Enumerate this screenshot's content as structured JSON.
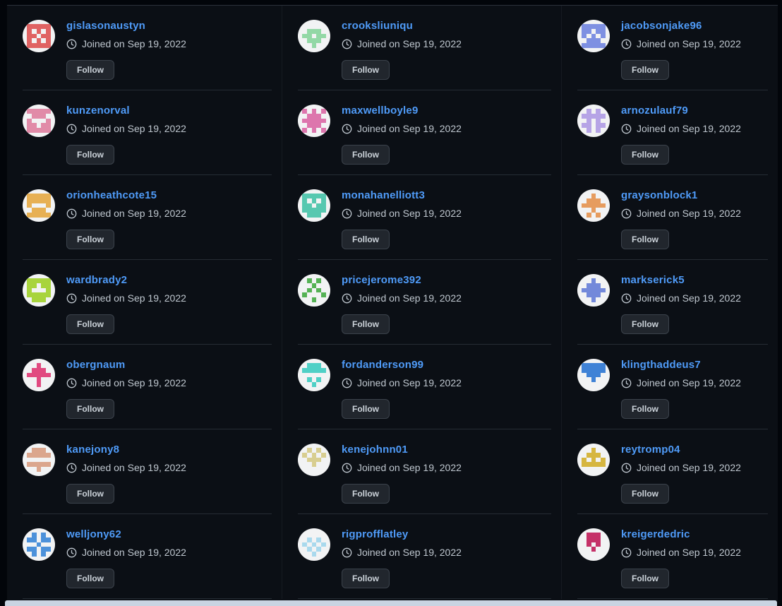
{
  "page": {
    "joined_date_text": "Joined on Sep 19, 2022",
    "follow_label": "Follow"
  },
  "colors": {
    "background": "#0b0f15",
    "link_blue": "#4f9bf8",
    "muted_text": "#bfc7cf",
    "button_bg": "#21262d",
    "button_border": "#3b424b",
    "separator": "#262c34",
    "bottom_strip": "#c9d4e2"
  },
  "users": [
    {
      "username": "gislasonaustyn",
      "joined": "Joined on Sep 19, 2022",
      "follow_label": "Follow",
      "avatar": {
        "color": "#e06363",
        "bg": "#f2f3f4",
        "pattern": [
          "11111",
          "10101",
          "11011",
          "10101",
          "11111"
        ]
      }
    },
    {
      "username": "crooksliuniqu",
      "joined": "Joined on Sep 19, 2022",
      "follow_label": "Follow",
      "avatar": {
        "color": "#93d8a6",
        "bg": "#f2f3f4",
        "pattern": [
          "00000",
          "01110",
          "11011",
          "01110",
          "00100"
        ]
      }
    },
    {
      "username": "jacobsonjake96",
      "joined": "Joined on Sep 19, 2022",
      "follow_label": "Follow",
      "avatar": {
        "color": "#7e90e2",
        "bg": "#f2f3f4",
        "pattern": [
          "11111",
          "11011",
          "10101",
          "01110",
          "11111"
        ]
      }
    },
    {
      "username": "kunzenorval",
      "joined": "Joined on Sep 19, 2022",
      "follow_label": "Follow",
      "avatar": {
        "color": "#e18ba8",
        "bg": "#f2f3f4",
        "pattern": [
          "11111",
          "01110",
          "10001",
          "11011",
          "11111"
        ]
      }
    },
    {
      "username": "maxwellboyle9",
      "joined": "Joined on Sep 19, 2022",
      "follow_label": "Follow",
      "avatar": {
        "color": "#dd76ad",
        "bg": "#f2f3f4",
        "pattern": [
          "10101",
          "01110",
          "11111",
          "01110",
          "10101"
        ]
      }
    },
    {
      "username": "arnozulauf79",
      "joined": "Joined on Sep 19, 2022",
      "follow_label": "Follow",
      "avatar": {
        "color": "#b6a4e6",
        "bg": "#f2f3f4",
        "pattern": [
          "01010",
          "11111",
          "01010",
          "11011",
          "01010"
        ]
      }
    },
    {
      "username": "orionheathcote15",
      "joined": "Joined on Sep 19, 2022",
      "follow_label": "Follow",
      "avatar": {
        "color": "#e7b054",
        "bg": "#f2f3f4",
        "pattern": [
          "11111",
          "11111",
          "10001",
          "01110",
          "11111"
        ]
      }
    },
    {
      "username": "monahanelliott3",
      "joined": "Joined on Sep 19, 2022",
      "follow_label": "Follow",
      "avatar": {
        "color": "#57c8b0",
        "bg": "#f2f3f4",
        "pattern": [
          "11111",
          "10101",
          "11011",
          "11111",
          "01110"
        ]
      }
    },
    {
      "username": "graysonblock1",
      "joined": "Joined on Sep 19, 2022",
      "follow_label": "Follow",
      "avatar": {
        "color": "#e69c5f",
        "bg": "#f2f3f4",
        "pattern": [
          "00100",
          "01110",
          "11111",
          "00100",
          "01010"
        ]
      }
    },
    {
      "username": "wardbrady2",
      "joined": "Joined on Sep 19, 2022",
      "follow_label": "Follow",
      "avatar": {
        "color": "#a8d43d",
        "bg": "#f2f3f4",
        "pattern": [
          "11111",
          "11011",
          "10001",
          "11111",
          "01110"
        ]
      }
    },
    {
      "username": "pricejerome392",
      "joined": "Joined on Sep 19, 2022",
      "follow_label": "Follow",
      "avatar": {
        "color": "#55b255",
        "bg": "#f2f3f4",
        "pattern": [
          "01010",
          "00100",
          "01010",
          "10001",
          "00100"
        ]
      }
    },
    {
      "username": "markserick5",
      "joined": "Joined on Sep 19, 2022",
      "follow_label": "Follow",
      "avatar": {
        "color": "#7389da",
        "bg": "#f2f3f4",
        "pattern": [
          "00100",
          "01110",
          "11111",
          "01110",
          "00100"
        ]
      }
    },
    {
      "username": "obergnaum",
      "joined": "Joined on Sep 19, 2022",
      "follow_label": "Follow",
      "avatar": {
        "color": "#e14a80",
        "bg": "#f2f3f4",
        "pattern": [
          "00100",
          "01110",
          "11111",
          "00100",
          "00100"
        ]
      }
    },
    {
      "username": "fordanderson99",
      "joined": "Joined on Sep 19, 2022",
      "follow_label": "Follow",
      "avatar": {
        "color": "#50d0c6",
        "bg": "#f2f3f4",
        "pattern": [
          "01110",
          "11111",
          "00000",
          "01010",
          "00100"
        ]
      }
    },
    {
      "username": "klingthaddeus7",
      "joined": "Joined on Sep 19, 2022",
      "follow_label": "Follow",
      "avatar": {
        "color": "#3f82d6",
        "bg": "#f2f3f4",
        "pattern": [
          "11111",
          "11111",
          "01110",
          "00100",
          "00000"
        ]
      }
    },
    {
      "username": "kanejony8",
      "joined": "Joined on Sep 19, 2022",
      "follow_label": "Follow",
      "avatar": {
        "color": "#dba68d",
        "bg": "#f2f3f4",
        "pattern": [
          "01110",
          "11111",
          "00000",
          "11111",
          "00100"
        ]
      }
    },
    {
      "username": "kenejohnn01",
      "joined": "Joined on Sep 19, 2022",
      "follow_label": "Follow",
      "avatar": {
        "color": "#d8ce90",
        "bg": "#f2f3f4",
        "pattern": [
          "01010",
          "10101",
          "01110",
          "00100",
          "00000"
        ]
      }
    },
    {
      "username": "reytromp04",
      "joined": "Joined on Sep 19, 2022",
      "follow_label": "Follow",
      "avatar": {
        "color": "#d6b640",
        "bg": "#f2f3f4",
        "pattern": [
          "00100",
          "01110",
          "10101",
          "11111",
          "00000"
        ]
      }
    },
    {
      "username": "welljony62",
      "joined": "Joined on Sep 19, 2022",
      "follow_label": "Follow",
      "avatar": {
        "color": "#4c91da",
        "bg": "#f2f3f4",
        "pattern": [
          "01010",
          "11011",
          "00100",
          "11011",
          "01010"
        ]
      }
    },
    {
      "username": "rigprofflatley",
      "joined": "Joined on Sep 19, 2022",
      "follow_label": "Follow",
      "avatar": {
        "color": "#a9d9ed",
        "bg": "#f2f3f4",
        "pattern": [
          "00000",
          "01010",
          "10101",
          "01010",
          "00100"
        ]
      }
    },
    {
      "username": "kreigerdedric",
      "joined": "Joined on Sep 19, 2022",
      "follow_label": "Follow",
      "avatar": {
        "color": "#c53168",
        "bg": "#f2f3f4",
        "pattern": [
          "01110",
          "01110",
          "01010",
          "00100",
          "00000"
        ]
      }
    }
  ]
}
